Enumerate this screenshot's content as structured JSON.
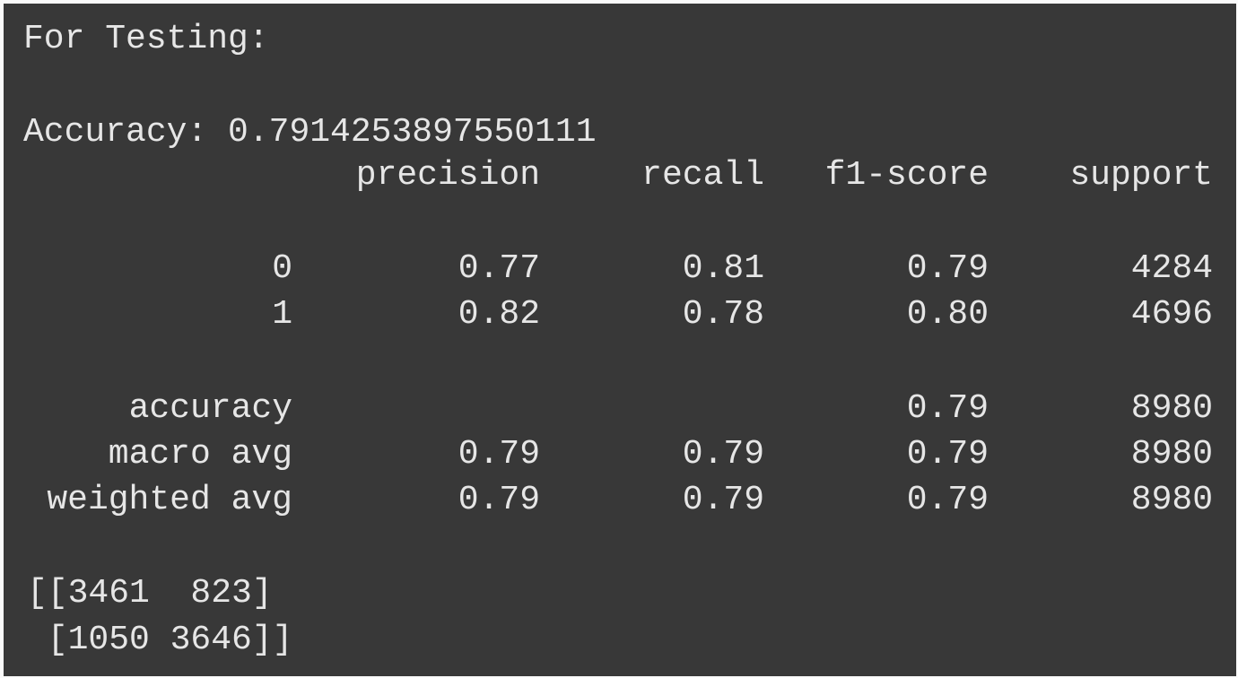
{
  "console": {
    "heading": "For Testing:",
    "accuracy_line": "Accuracy: 0.7914253897550111",
    "report": {
      "headers": [
        "precision",
        "recall",
        "f1-score",
        "support"
      ],
      "class_rows": [
        {
          "label": "0",
          "precision": "0.77",
          "recall": "0.81",
          "f1": "0.79",
          "support": "4284"
        },
        {
          "label": "1",
          "precision": "0.82",
          "recall": "0.78",
          "f1": "0.80",
          "support": "4696"
        }
      ],
      "summary_rows": [
        {
          "label": "accuracy",
          "precision": "",
          "recall": "",
          "f1": "0.79",
          "support": "8980"
        },
        {
          "label": "macro avg",
          "precision": "0.79",
          "recall": "0.79",
          "f1": "0.79",
          "support": "8980"
        },
        {
          "label": "weighted avg",
          "precision": "0.79",
          "recall": "0.79",
          "f1": "0.79",
          "support": "8980"
        }
      ]
    },
    "confusion_matrix": {
      "line1": "[[3461  823]",
      "line2": " [1050 3646]]"
    }
  }
}
